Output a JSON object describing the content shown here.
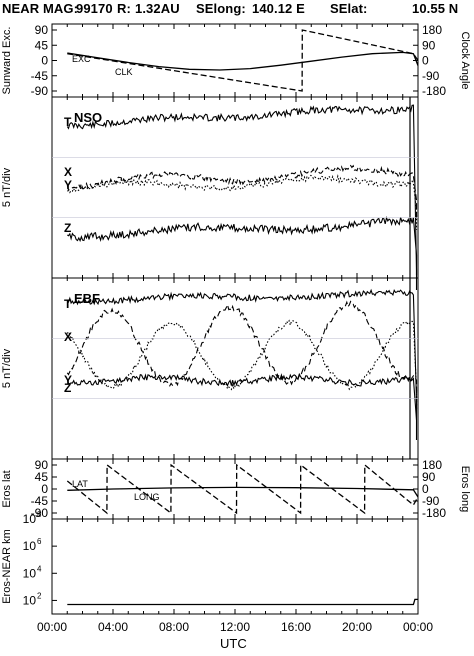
{
  "header": {
    "mission": "NEAR MAG:",
    "date_code": "99170",
    "r_label": "R:",
    "r_value": "1.32AU",
    "selong_label": "SElong:",
    "selong_value": "140.12 E",
    "selat_label": "SElat:",
    "selat_value": "10.55 N"
  },
  "x_axis": {
    "label": "UTC",
    "ticks": [
      "00:00",
      "04:00",
      "08:00",
      "12:00",
      "16:00",
      "20:00",
      "00:00"
    ]
  },
  "chart_data": [
    {
      "type": "line",
      "panel": "sunward-clock",
      "ylabel_left": "Sunward Exc.",
      "ylabel_right": "Clock Angle",
      "left_ticks": [
        "90",
        "45",
        "0",
        "-45",
        "-90"
      ],
      "right_ticks": [
        "180",
        "90",
        "0",
        "-90",
        "-180"
      ],
      "ylim": [
        -90,
        90
      ],
      "y2lim": [
        -180,
        180
      ],
      "series": [
        {
          "name": "EXC",
          "style": "solid",
          "axis": "left",
          "x": [
            1,
            3,
            5,
            7,
            9,
            11,
            13,
            15,
            17,
            19,
            21,
            23,
            23.7,
            24
          ],
          "y": [
            22,
            8,
            -6,
            -18,
            -26,
            -28,
            -24,
            -14,
            -2,
            10,
            20,
            24,
            20,
            -15
          ]
        },
        {
          "name": "CLK",
          "style": "dashed",
          "axis": "right",
          "x": [
            1,
            16.4,
            16.41,
            23.7,
            24
          ],
          "y": [
            40,
            -180,
            180,
            40,
            0
          ]
        }
      ]
    },
    {
      "type": "line",
      "panel": "nso",
      "ylabel_left": "5 nT/div",
      "frame_label": "NSO",
      "series": [
        {
          "name": "T",
          "style": "solid",
          "x": [
            1,
            24
          ],
          "y": [
            0,
            0
          ]
        },
        {
          "name": "X",
          "style": "dashed",
          "x": [
            1,
            24
          ],
          "y": [
            0,
            0
          ]
        },
        {
          "name": "Y",
          "style": "dotted",
          "x": [
            1,
            24
          ],
          "y": [
            0,
            0
          ]
        },
        {
          "name": "Z",
          "style": "solid",
          "x": [
            1,
            24
          ],
          "y": [
            0,
            0
          ]
        }
      ]
    },
    {
      "type": "line",
      "panel": "ebf",
      "ylabel_left": "5 nT/div",
      "frame_label": "EBF",
      "series": [
        {
          "name": "T",
          "style": "solid",
          "x": [
            1,
            24
          ],
          "y": [
            0,
            0
          ]
        },
        {
          "name": "X",
          "style": "dashed",
          "x": [
            1,
            24
          ],
          "y": [
            0,
            0
          ]
        },
        {
          "name": "Y",
          "style": "dotted",
          "x": [
            1,
            24
          ],
          "y": [
            0,
            0
          ]
        },
        {
          "name": "Z",
          "style": "solid",
          "x": [
            1,
            24
          ],
          "y": [
            0,
            0
          ]
        }
      ]
    },
    {
      "type": "line",
      "panel": "eros-latlong",
      "ylabel_left": "Eros lat",
      "ylabel_right": "Eros long",
      "left_ticks": [
        "90",
        "45",
        "0",
        "-45",
        "-90"
      ],
      "right_ticks": [
        "180",
        "90",
        "0",
        "-90",
        "-180"
      ],
      "ylim": [
        -90,
        90
      ],
      "y2lim": [
        -180,
        180
      ],
      "series": [
        {
          "name": "LAT",
          "style": "solid",
          "axis": "left",
          "x": [
            1,
            4,
            8,
            12,
            16,
            20,
            23.7,
            24
          ],
          "y": [
            -5,
            0,
            4,
            6,
            5,
            2,
            -3,
            -30
          ]
        },
        {
          "name": "LONG",
          "style": "dashed",
          "axis": "right",
          "x": [
            1,
            3.6,
            3.61,
            7.8,
            7.81,
            12.1,
            12.11,
            16.3,
            16.31,
            20.5,
            20.51,
            23.7,
            24
          ],
          "y": [
            60,
            -180,
            180,
            -180,
            180,
            -180,
            180,
            -180,
            180,
            -180,
            180,
            -120,
            -60
          ]
        }
      ]
    },
    {
      "type": "line",
      "panel": "eros-near-distance",
      "ylabel_left": "Eros-NEAR km",
      "scale": "log",
      "left_ticks": [
        "10^8",
        "10^6",
        "10^4",
        "10^2"
      ],
      "ylim": [
        10,
        100000000
      ],
      "series": [
        {
          "name": "distance",
          "style": "solid",
          "x": [
            1,
            23.7,
            23.8,
            24
          ],
          "y": [
            50,
            50,
            120,
            120
          ]
        }
      ]
    }
  ]
}
